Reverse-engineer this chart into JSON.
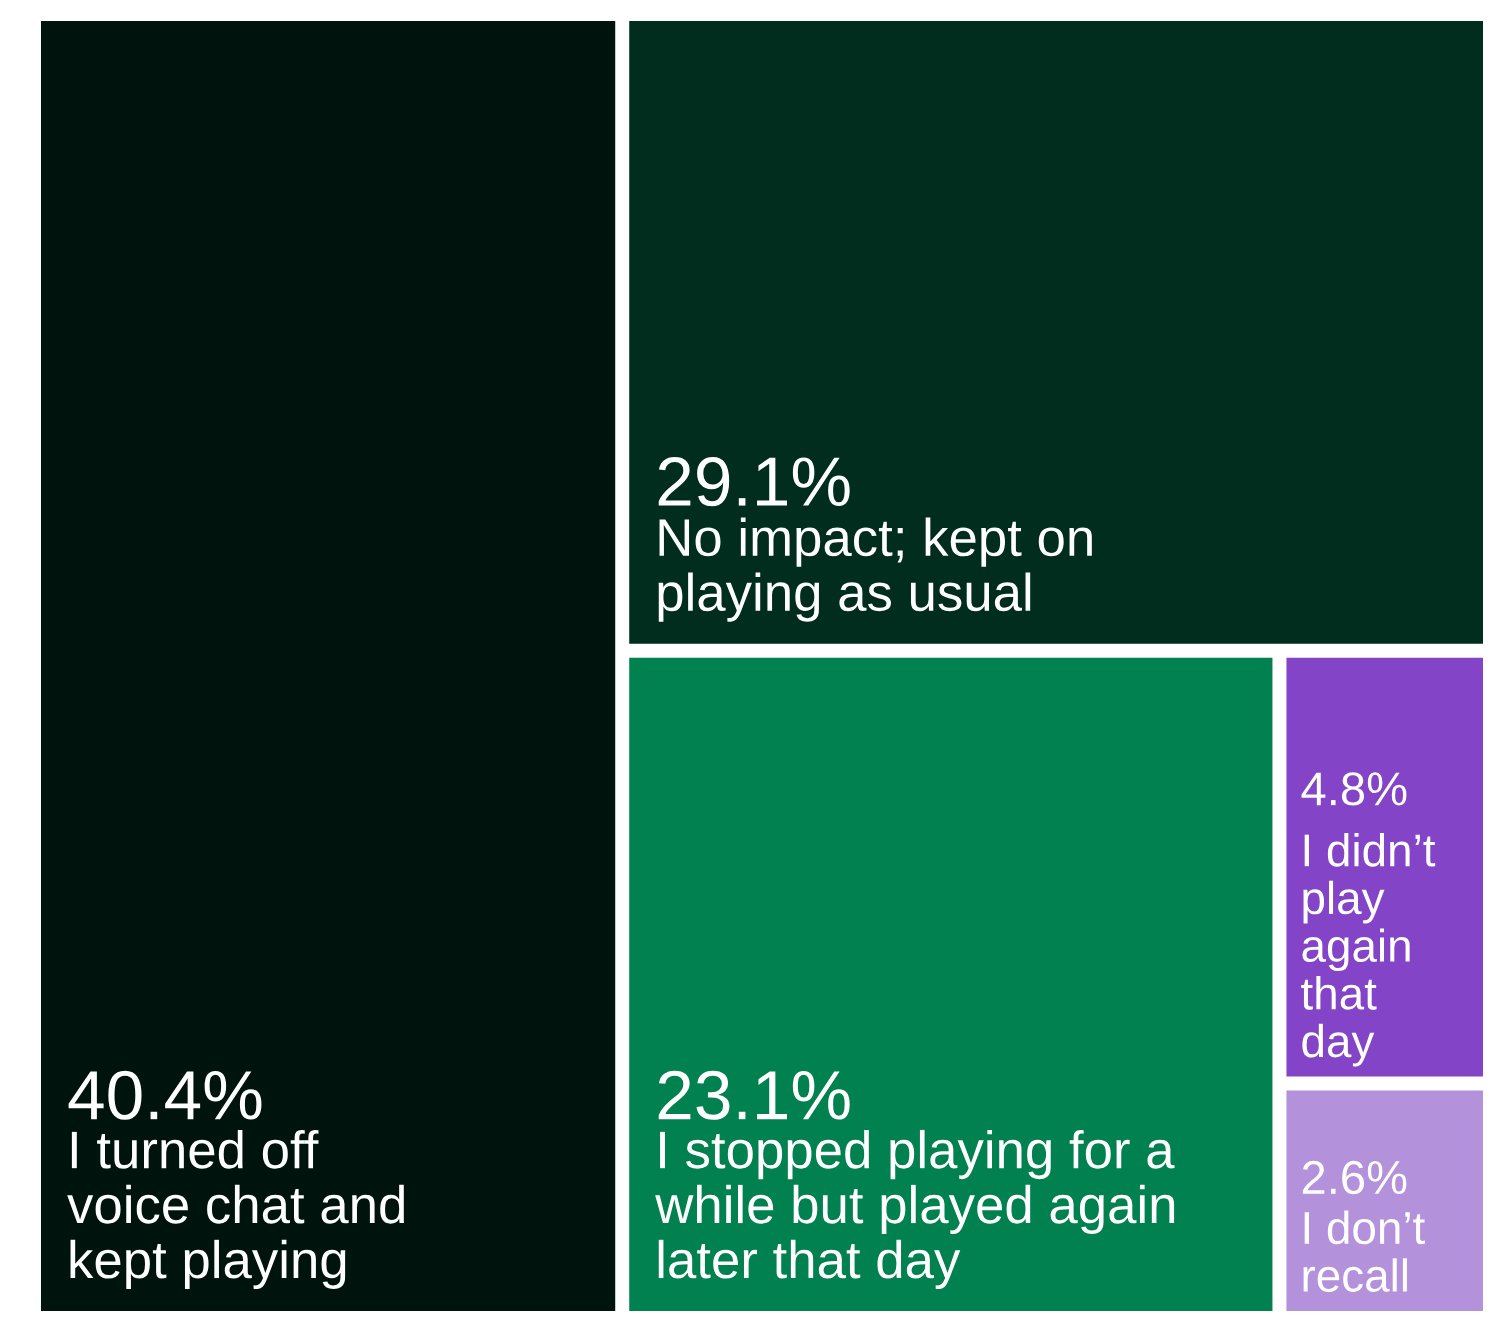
{
  "chart_data": {
    "type": "other",
    "categories": [
      "I turned off\nvoice chat and\nkept playing",
      "No impact; kept on\nplaying as usual",
      "I stopped playing for a\nwhile but played again\nlater that day",
      "I didn’t\nplay\nagain\nthat\nday",
      "I don’t\nrecall"
    ],
    "values": [
      40.4,
      29.1,
      23.1,
      4.8,
      2.6
    ],
    "value_labels": [
      "40.4%",
      "29.1%",
      "23.1%",
      "4.8%",
      "2.6%"
    ],
    "colors": [
      "#00140e",
      "#002d1d",
      "#00814f",
      "#8444c7",
      "#b491db"
    ]
  }
}
